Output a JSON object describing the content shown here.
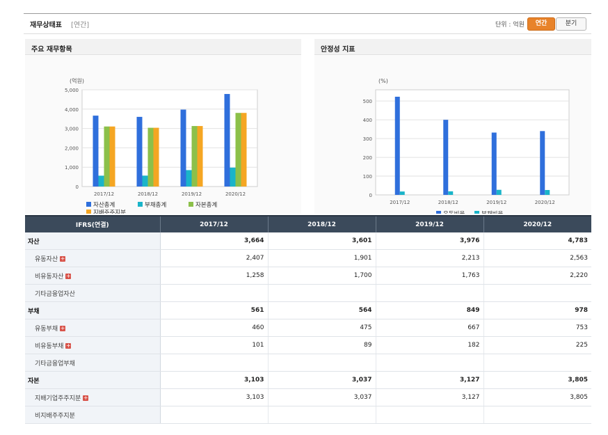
{
  "header": {
    "title": "재무상태표",
    "subtitle": "[연간]",
    "unit": "단위 : 억원",
    "toggle_annual": "연간",
    "toggle_quarter": "분기"
  },
  "colors": {
    "blue": "#2f6fdc",
    "cyan": "#1ab4c9",
    "green": "#8cc04a",
    "orange": "#f5a623",
    "header_bg": "#3b4a5b",
    "accent": "#e8832a"
  },
  "chart_left_title": "주요 재무항목",
  "chart_right_title": "안정성 지표",
  "chart_data": [
    {
      "type": "bar",
      "ylabel": "(억원)",
      "ylim": [
        0,
        5000
      ],
      "yticks": [
        "0",
        "1,000",
        "2,000",
        "3,000",
        "4,000",
        "5,000"
      ],
      "categories": [
        "2017/12",
        "2018/12",
        "2019/12",
        "2020/12"
      ],
      "series": [
        {
          "name": "자산총계",
          "values": [
            3664,
            3601,
            3976,
            4783
          ]
        },
        {
          "name": "부채총계",
          "values": [
            561,
            564,
            849,
            978
          ]
        },
        {
          "name": "자본총계",
          "values": [
            3103,
            3037,
            3127,
            3805
          ]
        },
        {
          "name": "지배주주지분",
          "values": [
            3103,
            3037,
            3127,
            3805
          ]
        }
      ],
      "legend": "bottom"
    },
    {
      "type": "bar",
      "ylabel": "(%)",
      "ylim": [
        0,
        560
      ],
      "yticks": [
        "0",
        "100",
        "200",
        "300",
        "400",
        "500"
      ],
      "categories": [
        "2017/12",
        "2018/12",
        "2019/12",
        "2020/12"
      ],
      "series": [
        {
          "name": "유동비율",
          "values": [
            523,
            400,
            332,
            340
          ]
        },
        {
          "name": "부채비율",
          "values": [
            18,
            19,
            27,
            26
          ]
        }
      ],
      "legend": "bottom"
    }
  ],
  "table": {
    "corner": "IFRS(연결)",
    "columns": [
      "2017/12",
      "2018/12",
      "2019/12",
      "2020/12"
    ],
    "rows": [
      {
        "label": "자산",
        "main": true,
        "values": [
          "3,664",
          "3,601",
          "3,976",
          "4,783"
        ]
      },
      {
        "label": "유동자산",
        "plus": true,
        "values": [
          "2,407",
          "1,901",
          "2,213",
          "2,563"
        ]
      },
      {
        "label": "비유동자산",
        "plus": true,
        "values": [
          "1,258",
          "1,700",
          "1,763",
          "2,220"
        ]
      },
      {
        "label": "기타금융업자산",
        "values": [
          "",
          "",
          "",
          ""
        ]
      },
      {
        "label": "부채",
        "main": true,
        "values": [
          "561",
          "564",
          "849",
          "978"
        ]
      },
      {
        "label": "유동부채",
        "plus": true,
        "values": [
          "460",
          "475",
          "667",
          "753"
        ]
      },
      {
        "label": "비유동부채",
        "plus": true,
        "values": [
          "101",
          "89",
          "182",
          "225"
        ]
      },
      {
        "label": "기타금융업부채",
        "values": [
          "",
          "",
          "",
          ""
        ]
      },
      {
        "label": "자본",
        "main": true,
        "values": [
          "3,103",
          "3,037",
          "3,127",
          "3,805"
        ]
      },
      {
        "label": "지배기업주주지분",
        "plus": true,
        "values": [
          "3,103",
          "3,037",
          "3,127",
          "3,805"
        ]
      },
      {
        "label": "비지배주주지분",
        "values": [
          "",
          "",
          "",
          ""
        ]
      }
    ]
  }
}
